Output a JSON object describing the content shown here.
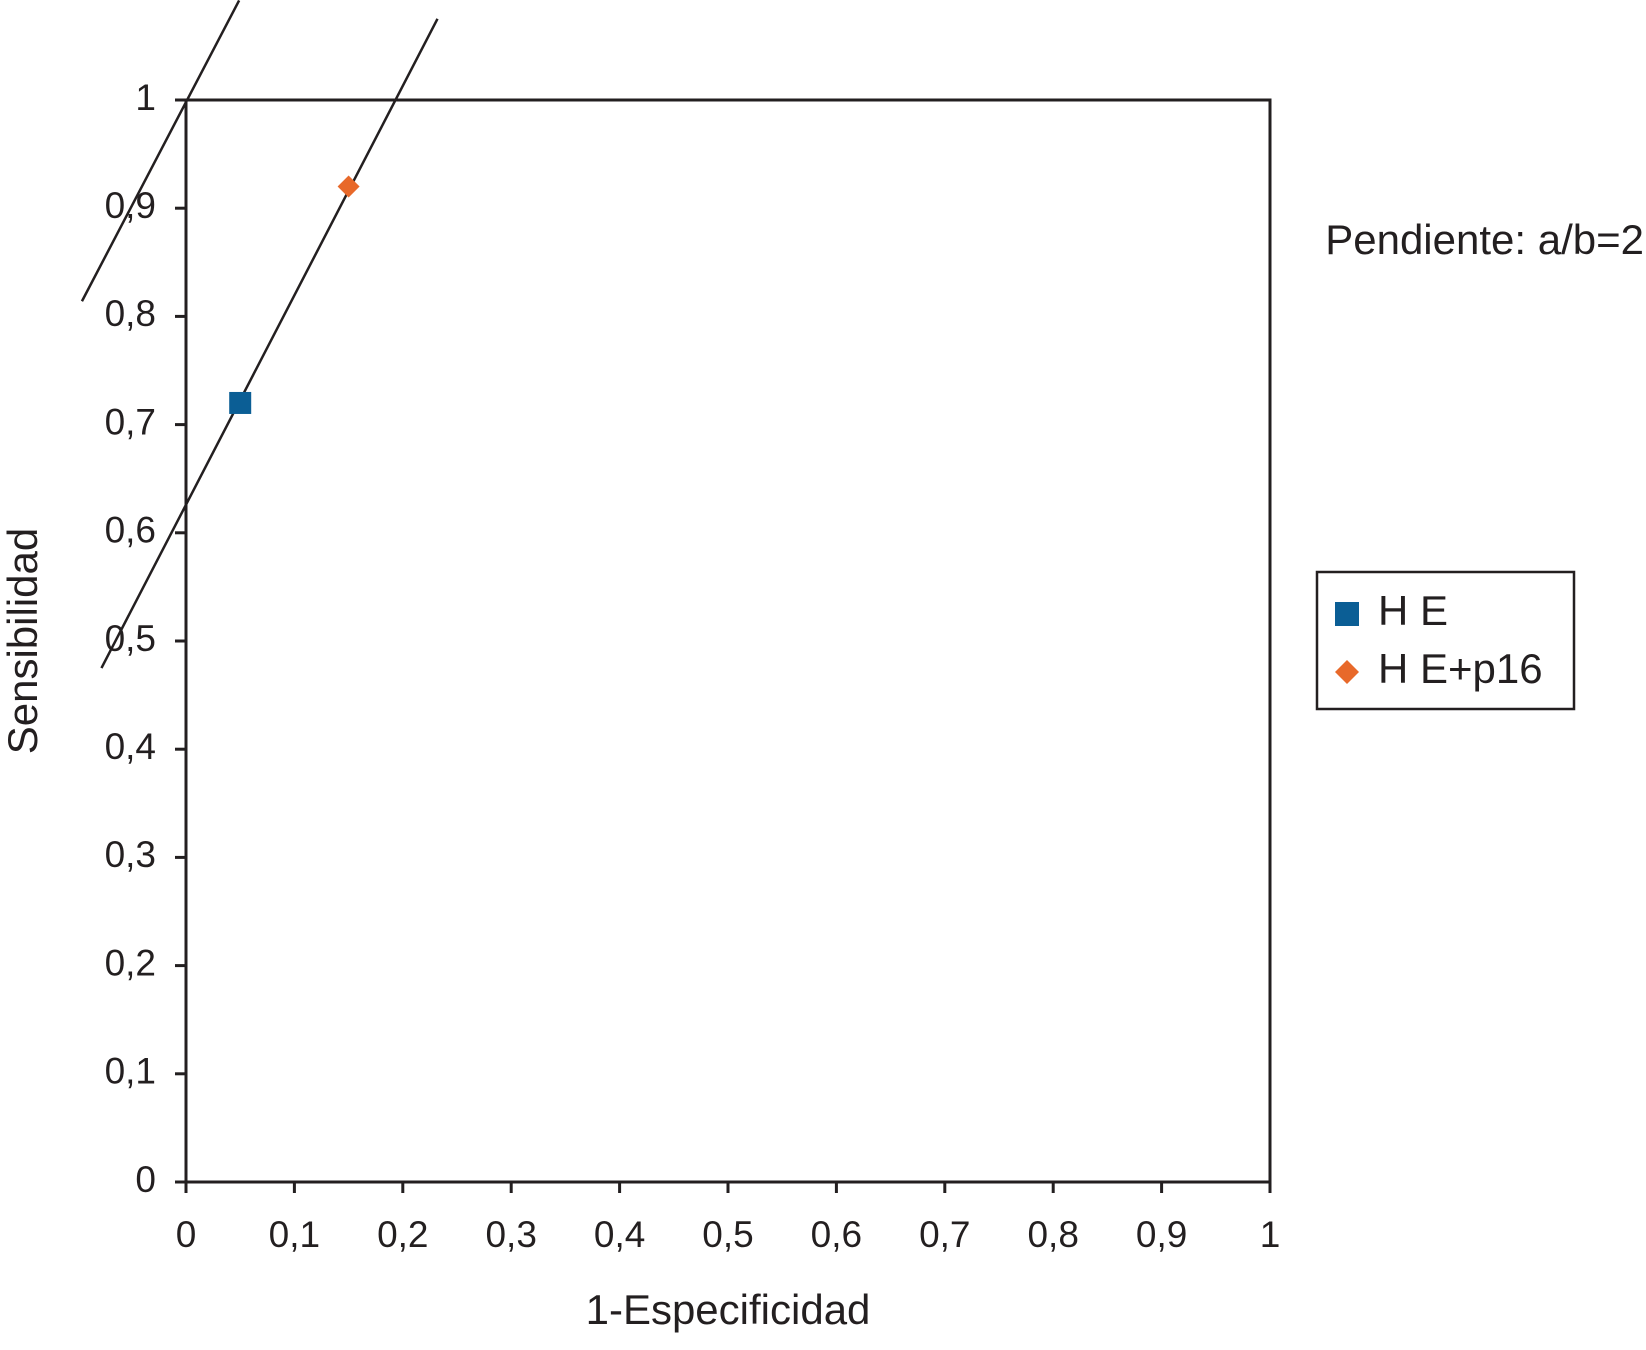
{
  "chart_data": {
    "type": "scatter",
    "xlabel": "1-Especificidad",
    "ylabel": "Sensibilidad",
    "annotation": "Pendiente: a/b=2",
    "series": [
      {
        "name": "H E",
        "color": "#0b5e95",
        "marker": "square",
        "x": [
          0.05
        ],
        "values": [
          0.72
        ]
      },
      {
        "name": "H E+p16",
        "color": "#e8692a",
        "marker": "diamond",
        "x": [
          0.15
        ],
        "values": [
          0.92
        ]
      }
    ],
    "reference_lines": [
      {
        "color": "#231f20",
        "x": [
          -0.096,
          0.049
        ],
        "y": [
          0.814,
          1.092
        ]
      },
      {
        "color": "#231f20",
        "x": [
          -0.078,
          0.232
        ],
        "y": [
          0.475,
          1.075
        ]
      }
    ],
    "xlim": [
      0,
      1
    ],
    "ylim": [
      0,
      1
    ],
    "xticks": [
      0,
      {
        "value": 0.1,
        "label": "0,1"
      },
      {
        "value": 0.2,
        "label": "0,2"
      },
      {
        "value": 0.3,
        "label": "0,3"
      },
      {
        "value": 0.4,
        "label": "0,4"
      },
      {
        "value": 0.5,
        "label": "0,5"
      },
      {
        "value": 0.6,
        "label": "0,6"
      },
      {
        "value": 0.7,
        "label": "0,7"
      },
      {
        "value": 0.8,
        "label": "0,8"
      },
      {
        "value": 0.9,
        "label": "0,9"
      },
      1
    ],
    "yticks": [
      0,
      {
        "value": 0.1,
        "label": "0,1"
      },
      {
        "value": 0.2,
        "label": "0,2"
      },
      {
        "value": 0.3,
        "label": "0,3"
      },
      {
        "value": 0.4,
        "label": "0,4"
      },
      {
        "value": 0.5,
        "label": "0,5"
      },
      {
        "value": 0.6,
        "label": "0,6"
      },
      {
        "value": 0.7,
        "label": "0,7"
      },
      {
        "value": 0.8,
        "label": "0,8"
      },
      {
        "value": 0.9,
        "label": "0,9"
      },
      1
    ],
    "grid": false,
    "legend": "right"
  }
}
